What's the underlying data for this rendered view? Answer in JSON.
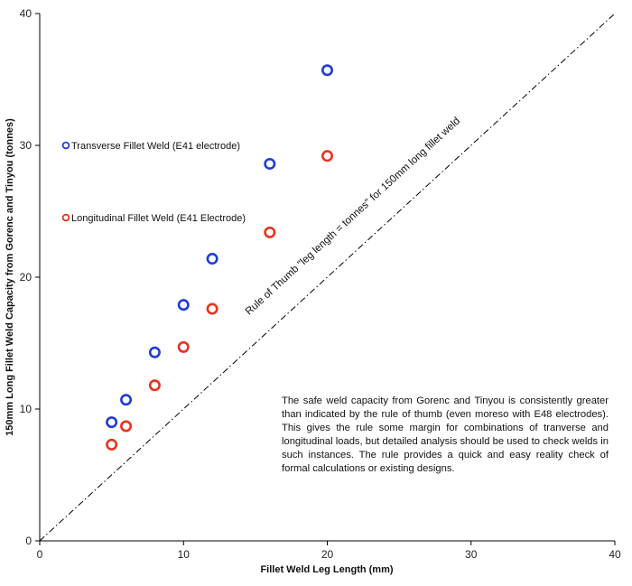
{
  "chart_data": {
    "type": "scatter",
    "title": "",
    "xlabel": "Fillet Weld Leg Length (mm)",
    "ylabel": "150mm Long Fillet Weld Capacity from Gorenc and Tinyou (tonnes)",
    "xlim": [
      0,
      40
    ],
    "ylim": [
      0,
      40
    ],
    "xticks": [
      0,
      10,
      20,
      30,
      40
    ],
    "yticks": [
      0,
      10,
      20,
      30,
      40
    ],
    "grid": false,
    "legend_position": "left, inside plot",
    "series": [
      {
        "name": "Transverse Fillet Weld (E41 electrode)",
        "color": "#1f3bd6",
        "x": [
          5,
          6,
          8,
          10,
          12,
          16,
          20
        ],
        "y": [
          9.0,
          10.7,
          14.3,
          17.9,
          21.4,
          28.6,
          35.7
        ]
      },
      {
        "name": "Longitudinal Fillet Weld (E41 Electrode)",
        "color": "#e8321e",
        "x": [
          5,
          6,
          8,
          10,
          12,
          16,
          20
        ],
        "y": [
          7.3,
          8.7,
          11.8,
          14.7,
          17.6,
          23.4,
          29.2
        ]
      }
    ],
    "reference_line": {
      "label": "Rule of Thumb  \"leg length = tonnes\" for 150mm long fillet weld",
      "style": "dash-dot",
      "color": "#000000",
      "from": [
        0,
        0
      ],
      "to": [
        40,
        40
      ]
    },
    "annotation": "The safe weld capacity from Gorenc and Tinyou is consistently greater than indicated by the rule of thumb (even moreso with E48 electrodes).   This gives the rule some margin for combinations of tranverse and longitudinal loads, but detailed analysis should be used to check welds in such instances.  The rule provides a quick and easy reality check of formal calculations or existing designs."
  }
}
